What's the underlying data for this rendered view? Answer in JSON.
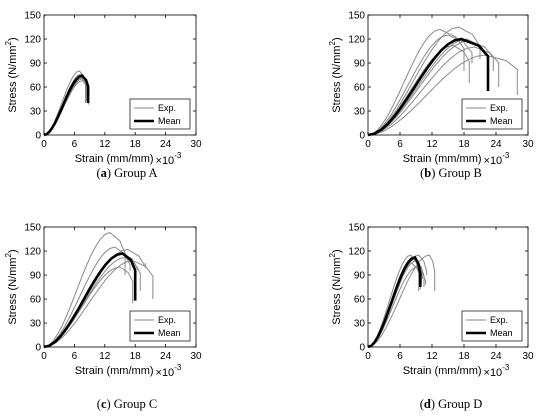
{
  "chart_data": [
    {
      "type": "line",
      "caption_letter": "a",
      "caption_text": " Group A",
      "xlabel": "Strain (mm/mm)",
      "xlabel_scale": "×10",
      "xlabel_exp": "-3",
      "ylabel": "Stress (N/mm",
      "ylabel_sup": "2",
      "ylabel_close": ")",
      "xlim": [
        0,
        30
      ],
      "ylim": [
        0,
        150
      ],
      "xticks": [
        "0",
        "6",
        "12",
        "18",
        "24",
        "30"
      ],
      "yticks": [
        "0",
        "30",
        "60",
        "90",
        "120",
        "150"
      ],
      "legend": [
        "Exp.",
        "Mean"
      ],
      "legend_position": "bottom-right",
      "grid": false,
      "series": [
        {
          "peak": [
            7.0,
            80
          ],
          "end": [
            8.2,
            40
          ]
        },
        {
          "peak": [
            7.2,
            74
          ],
          "end": [
            8.5,
            45
          ]
        },
        {
          "peak": [
            7.5,
            70
          ],
          "end": [
            8.8,
            38
          ]
        },
        {
          "peak": [
            7.6,
            68
          ],
          "end": [
            8.6,
            48
          ]
        },
        {
          "peak": [
            7.8,
            72
          ],
          "end": [
            8.9,
            50
          ]
        },
        {
          "peak": [
            7.3,
            76
          ],
          "end": [
            8.4,
            42
          ]
        }
      ],
      "mean": {
        "peak": [
          7.5,
          74
        ],
        "end": [
          8.7,
          40
        ]
      }
    },
    {
      "type": "line",
      "caption_letter": "b",
      "caption_text": " Group B",
      "xlabel": "Strain (mm/mm)",
      "xlabel_scale": "×10",
      "xlabel_exp": "-3",
      "ylabel": "Stress (N/mm",
      "ylabel_sup": "2",
      "ylabel_close": ")",
      "xlim": [
        0,
        30
      ],
      "ylim": [
        0,
        150
      ],
      "xticks": [
        "0",
        "6",
        "12",
        "18",
        "24",
        "30"
      ],
      "yticks": [
        "0",
        "30",
        "60",
        "90",
        "120",
        "150"
      ],
      "legend": [
        "Exp.",
        "Mean"
      ],
      "legend_position": "bottom-right",
      "grid": false,
      "series": [
        {
          "peak": [
            13.5,
            132
          ],
          "end": [
            18.0,
            80
          ]
        },
        {
          "peak": [
            15.0,
            125
          ],
          "end": [
            19.5,
            90
          ]
        },
        {
          "peak": [
            17.0,
            135
          ],
          "end": [
            21.0,
            95
          ]
        },
        {
          "peak": [
            18.5,
            120
          ],
          "end": [
            22.5,
            70
          ]
        },
        {
          "peak": [
            20.0,
            110
          ],
          "end": [
            24.5,
            60
          ]
        },
        {
          "peak": [
            22.0,
            100
          ],
          "end": [
            28.0,
            50
          ]
        },
        {
          "peak": [
            16.0,
            112
          ],
          "end": [
            19.0,
            65
          ]
        },
        {
          "peak": [
            19.0,
            118
          ],
          "end": [
            23.5,
            80
          ]
        }
      ],
      "mean": {
        "peak": [
          17.5,
          120
        ],
        "end": [
          22.5,
          55
        ]
      }
    },
    {
      "type": "line",
      "caption_letter": "c",
      "caption_text": " Group C",
      "xlabel": "Strain (mm/mm)",
      "xlabel_scale": "×10",
      "xlabel_exp": "-3",
      "ylabel": "Stress (N/mm",
      "ylabel_sup": "2",
      "ylabel_close": ")",
      "xlim": [
        0,
        30
      ],
      "ylim": [
        0,
        150
      ],
      "xticks": [
        "0",
        "6",
        "12",
        "18",
        "24",
        "30"
      ],
      "yticks": [
        "0",
        "30",
        "60",
        "90",
        "120",
        "150"
      ],
      "legend": [
        "Exp.",
        "Mean"
      ],
      "legend_position": "bottom-right",
      "grid": false,
      "series": [
        {
          "peak": [
            13.0,
            143
          ],
          "end": [
            16.0,
            90
          ]
        },
        {
          "peak": [
            14.0,
            125
          ],
          "end": [
            17.0,
            95
          ]
        },
        {
          "peak": [
            15.5,
            118
          ],
          "end": [
            18.5,
            100
          ]
        },
        {
          "peak": [
            16.5,
            122
          ],
          "end": [
            20.0,
            105
          ]
        },
        {
          "peak": [
            17.5,
            108
          ],
          "end": [
            21.5,
            60
          ]
        },
        {
          "peak": [
            15.0,
            100
          ],
          "end": [
            17.5,
            55
          ]
        },
        {
          "peak": [
            16.0,
            112
          ],
          "end": [
            19.0,
            70
          ]
        }
      ],
      "mean": {
        "peak": [
          15.5,
          117
        ],
        "end": [
          18.0,
          58
        ]
      }
    },
    {
      "type": "line",
      "caption_letter": "d",
      "caption_text": " Group D",
      "xlabel": "Strain (mm/mm)",
      "xlabel_scale": "×10",
      "xlabel_exp": "-3",
      "ylabel": "Stress (N/mm",
      "ylabel_sup": "2",
      "ylabel_close": ")",
      "xlim": [
        0,
        30
      ],
      "ylim": [
        0,
        150
      ],
      "xticks": [
        "0",
        "6",
        "12",
        "18",
        "24",
        "30"
      ],
      "yticks": [
        "0",
        "30",
        "60",
        "90",
        "120",
        "150"
      ],
      "legend": [
        "Exp.",
        "Mean"
      ],
      "legend_position": "bottom-right",
      "grid": false,
      "series": [
        {
          "peak": [
            8.0,
            115
          ],
          "end": [
            9.5,
            70
          ]
        },
        {
          "peak": [
            8.5,
            112
          ],
          "end": [
            10.0,
            80
          ]
        },
        {
          "peak": [
            9.0,
            108
          ],
          "end": [
            10.5,
            75
          ]
        },
        {
          "peak": [
            8.8,
            110
          ],
          "end": [
            10.2,
            85
          ]
        },
        {
          "peak": [
            9.5,
            115
          ],
          "end": [
            11.0,
            90
          ]
        },
        {
          "peak": [
            11.5,
            115
          ],
          "end": [
            12.5,
            70
          ]
        },
        {
          "peak": [
            8.2,
            105
          ],
          "end": [
            9.8,
            72
          ]
        },
        {
          "peak": [
            9.2,
            100
          ],
          "end": [
            10.8,
            78
          ]
        }
      ],
      "mean": {
        "peak": [
          8.8,
          112
        ],
        "end": [
          9.8,
          75
        ]
      }
    }
  ]
}
